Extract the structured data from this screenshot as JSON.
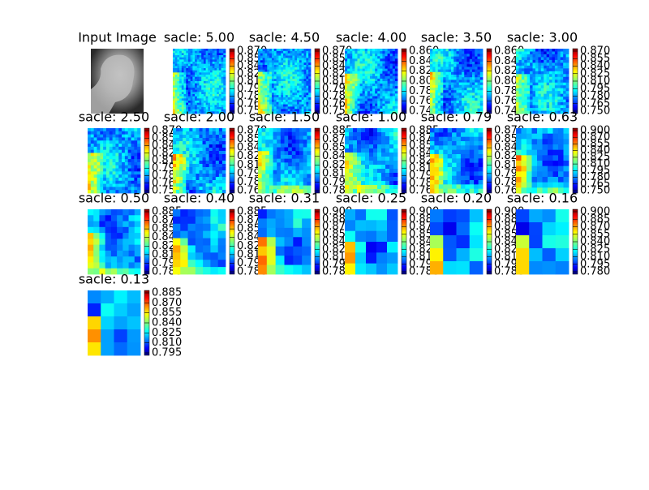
{
  "panels": [
    {
      "title": "Input Image"
    },
    {
      "title": "sacle: 5.00",
      "colorbar_ticks": [
        "0.870",
        "0.855",
        "0.840",
        "0.825",
        "0.810",
        "0.795",
        "0.780",
        "0.765",
        "0.750"
      ]
    },
    {
      "title": "sacle: 4.50",
      "colorbar_ticks": [
        "0.870",
        "0.855",
        "0.840",
        "0.825",
        "0.810",
        "0.795",
        "0.780",
        "0.765",
        "0.750"
      ]
    },
    {
      "title": "sacle: 4.00",
      "colorbar_ticks": [
        "0.860",
        "0.840",
        "0.820",
        "0.800",
        "0.780",
        "0.760",
        "0.740"
      ]
    },
    {
      "title": "sacle: 3.50",
      "colorbar_ticks": [
        "0.860",
        "0.840",
        "0.820",
        "0.800",
        "0.780",
        "0.760",
        "0.740"
      ]
    },
    {
      "title": "sacle: 3.00",
      "colorbar_ticks": [
        "0.870",
        "0.855",
        "0.840",
        "0.825",
        "0.810",
        "0.795",
        "0.780",
        "0.765",
        "0.750"
      ]
    },
    {
      "title": "sacle: 2.50",
      "colorbar_ticks": [
        "0.870",
        "0.855",
        "0.840",
        "0.825",
        "0.810",
        "0.795",
        "0.780",
        "0.765",
        "0.750"
      ]
    },
    {
      "title": "sacle: 2.00",
      "colorbar_ticks": [
        "0.870",
        "0.855",
        "0.840",
        "0.825",
        "0.810",
        "0.795",
        "0.780",
        "0.765"
      ]
    },
    {
      "title": "sacle: 1.50",
      "colorbar_ticks": [
        "0.885",
        "0.870",
        "0.855",
        "0.840",
        "0.825",
        "0.810",
        "0.795",
        "0.780"
      ]
    },
    {
      "title": "sacle: 1.00",
      "colorbar_ticks": [
        "0.885",
        "0.870",
        "0.855",
        "0.840",
        "0.825",
        "0.810",
        "0.795",
        "0.780",
        "0.765"
      ]
    },
    {
      "title": "sacle: 0.79",
      "colorbar_ticks": [
        "0.870",
        "0.855",
        "0.840",
        "0.825",
        "0.810",
        "0.795",
        "0.780",
        "0.765"
      ]
    },
    {
      "title": "sacle: 0.63",
      "colorbar_ticks": [
        "0.900",
        "0.870",
        "0.855",
        "0.840",
        "0.825",
        "0.810",
        "0.795",
        "0.780",
        "0.765",
        "0.750"
      ]
    },
    {
      "title": "sacle: 0.50",
      "colorbar_ticks": [
        "0.885",
        "0.870",
        "0.855",
        "0.840",
        "0.825",
        "0.810",
        "0.795",
        "0.780"
      ]
    },
    {
      "title": "sacle: 0.40",
      "colorbar_ticks": [
        "0.885",
        "0.870",
        "0.855",
        "0.840",
        "0.825",
        "0.810",
        "0.795",
        "0.780"
      ]
    },
    {
      "title": "sacle: 0.31",
      "colorbar_ticks": [
        "0.900",
        "0.885",
        "0.870",
        "0.855",
        "0.840",
        "0.825",
        "0.810",
        "0.795",
        "0.780"
      ]
    },
    {
      "title": "sacle: 0.25",
      "colorbar_ticks": [
        "0.900",
        "0.885",
        "0.870",
        "0.855",
        "0.840",
        "0.825",
        "0.810",
        "0.795",
        "0.780"
      ]
    },
    {
      "title": "sacle: 0.20",
      "colorbar_ticks": [
        "0.900",
        "0.885",
        "0.870",
        "0.855",
        "0.840",
        "0.825",
        "0.810",
        "0.795",
        "0.780"
      ]
    },
    {
      "title": "sacle: 0.16",
      "colorbar_ticks": [
        "0.900",
        "0.885",
        "0.870",
        "0.855",
        "0.840",
        "0.825",
        "0.810",
        "0.795",
        "0.780"
      ]
    },
    {
      "title": "sacle: 0.13",
      "colorbar_ticks": [
        "0.885",
        "0.870",
        "0.855",
        "0.840",
        "0.825",
        "0.810",
        "0.795"
      ]
    }
  ]
}
